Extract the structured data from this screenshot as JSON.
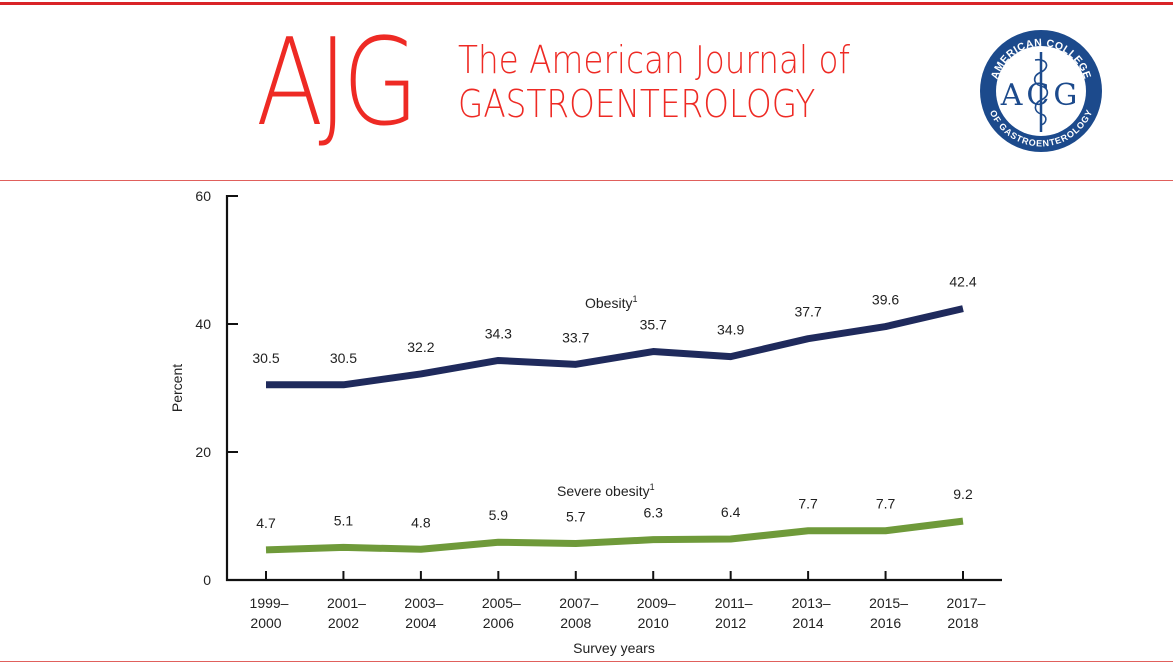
{
  "header": {
    "logo_text": "AJG",
    "journal_title_line1": "The American Journal of",
    "journal_title_line2": "GASTROENTEROLOGY",
    "seal_ring_top": "AMERICAN COLLEGE",
    "seal_ring_bottom": "OF GASTROENTEROLOGY",
    "seal_center": "ACG",
    "brand_color": "#ee2a24",
    "seal_color": "#1c4a8c"
  },
  "chart_data": {
    "type": "line",
    "title": "",
    "xlabel": "Survey years",
    "ylabel": "Percent",
    "ylim": [
      0,
      60
    ],
    "yticks": [
      0,
      20,
      40,
      60
    ],
    "grid": false,
    "categories": [
      [
        "1999–",
        "2000"
      ],
      [
        "2001–",
        "2002"
      ],
      [
        "2003–",
        "2004"
      ],
      [
        "2005–",
        "2006"
      ],
      [
        "2007–",
        "2008"
      ],
      [
        "2009–",
        "2010"
      ],
      [
        "2011–",
        "2012"
      ],
      [
        "2013–",
        "2014"
      ],
      [
        "2015–",
        "2016"
      ],
      [
        "2017–",
        "2018"
      ]
    ],
    "series": [
      {
        "name": "Obesity",
        "footnote": "1",
        "color": "#1f2a5c",
        "values": [
          30.5,
          30.5,
          32.2,
          34.3,
          33.7,
          35.7,
          34.9,
          37.7,
          39.6,
          42.4
        ],
        "value_labels": [
          "30.5",
          "30.5",
          "32.2",
          "34.3",
          "33.7",
          "35.7",
          "34.9",
          "37.7",
          "39.6",
          "42.4"
        ]
      },
      {
        "name": "Severe obesity",
        "footnote": "1",
        "color": "#6f9a3a",
        "values": [
          4.7,
          5.1,
          4.8,
          5.9,
          5.7,
          6.3,
          6.4,
          7.7,
          7.7,
          9.2
        ],
        "value_labels": [
          "4.7",
          "5.1",
          "4.8",
          "5.9",
          "5.7",
          "6.3",
          "6.4",
          "7.7",
          "7.7",
          "9.2"
        ]
      }
    ]
  }
}
